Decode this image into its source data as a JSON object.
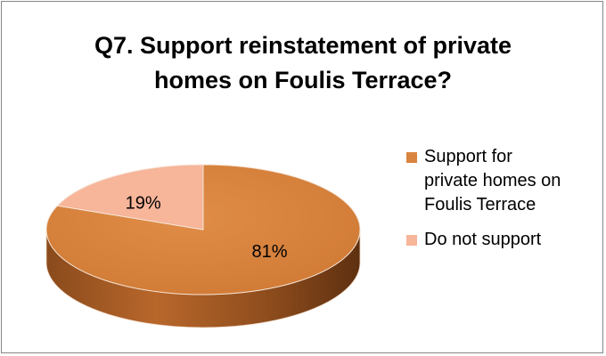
{
  "chart_data": {
    "type": "pie",
    "title_lines": [
      "Q7. Support reinstatement of private",
      "homes on Foulis Terrace?"
    ],
    "slices": [
      {
        "label_lines": [
          "Support for",
          "private homes on",
          "Foulis Terrace"
        ],
        "value": 81,
        "data_label": "81%",
        "color": "#D9843F"
      },
      {
        "label_lines": [
          "Do not support"
        ],
        "value": 19,
        "data_label": "19%",
        "color": "#F7B59A"
      }
    ],
    "legend_position": "right",
    "three_d": true
  }
}
